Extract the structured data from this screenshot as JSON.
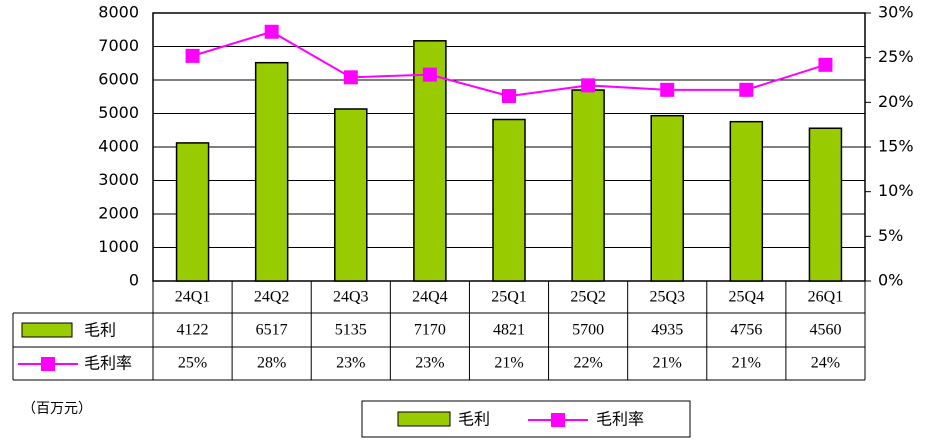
{
  "chart_data": {
    "type": "bar-line",
    "categories": [
      "24Q1",
      "24Q2",
      "24Q3",
      "24Q4",
      "25Q1",
      "25Q2",
      "25Q3",
      "25Q4",
      "26Q1"
    ],
    "series": [
      {
        "name": "毛利",
        "type": "bar",
        "color": "#99cc00",
        "values": [
          4122,
          6517,
          5135,
          7170,
          4821,
          5700,
          4935,
          4756,
          4560
        ]
      },
      {
        "name": "毛利率",
        "type": "line",
        "axis": "y2",
        "color": "#ff00ff",
        "values": [
          25.2,
          27.9,
          22.8,
          23.1,
          20.7,
          21.9,
          21.4,
          21.4,
          24.2
        ],
        "value_labels": [
          "25%",
          "28%",
          "23%",
          "23%",
          "21%",
          "22%",
          "21%",
          "21%",
          "24%"
        ]
      }
    ],
    "ylim": [
      0,
      8000
    ],
    "yticks": [
      0,
      1000,
      2000,
      3000,
      4000,
      5000,
      6000,
      7000,
      8000
    ],
    "y2lim": [
      0,
      30
    ],
    "y2ticks": [
      {
        "value": 0,
        "label": "0%"
      },
      {
        "value": 5,
        "label": "5%"
      },
      {
        "value": 10,
        "label": "10%"
      },
      {
        "value": 15,
        "label": "15%"
      },
      {
        "value": 20,
        "label": "20%"
      },
      {
        "value": 25,
        "label": "25%"
      },
      {
        "value": 30,
        "label": "30%"
      }
    ],
    "grid": true,
    "annotation": "（百万元）"
  }
}
